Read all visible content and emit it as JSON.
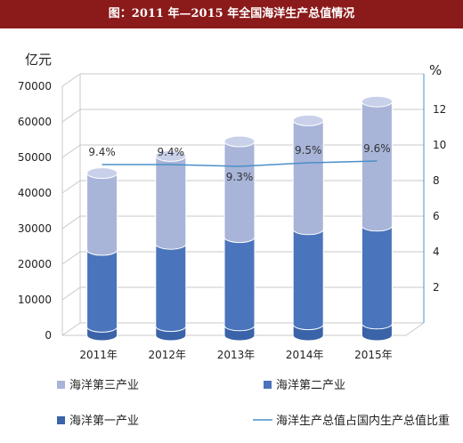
{
  "title": "图：2011 年—2015 年全国海洋生产总值情况",
  "chart_data": {
    "type": "bar",
    "stacked": true,
    "three_d": true,
    "categories": [
      "2011年",
      "2012年",
      "2013年",
      "2014年",
      "2015年"
    ],
    "series": [
      {
        "name": "海洋第三产业",
        "values": [
          21600,
          24700,
          26900,
          30600,
          34900
        ],
        "color": "#a8b4d8"
      },
      {
        "name": "海洋第二产业",
        "values": [
          21600,
          23100,
          24800,
          26700,
          27500
        ],
        "color": "#4a74bb"
      },
      {
        "name": "海洋第一产业",
        "values": [
          2400,
          2600,
          2800,
          3100,
          3300
        ],
        "color": "#3a63a8"
      }
    ],
    "line_series": {
      "name": "海洋生产总值占国内生产总值比重",
      "values": [
        9.4,
        9.4,
        9.3,
        9.5,
        9.6
      ],
      "labels": [
        "9.4%",
        "9.4%",
        "9.3%",
        "9.5%",
        "9.6%"
      ],
      "color": "#4a90c8",
      "axis": "right"
    },
    "y_left": {
      "label": "亿元",
      "ticks": [
        "0",
        "10000",
        "20000",
        "30000",
        "40000",
        "50000",
        "60000",
        "70000"
      ],
      "range": [
        0,
        70000
      ]
    },
    "y_right": {
      "label": "%",
      "ticks": [
        "2",
        "4",
        "6",
        "8",
        "10",
        "12"
      ],
      "range": [
        0,
        14
      ]
    },
    "grid": true,
    "legend_position": "bottom"
  }
}
